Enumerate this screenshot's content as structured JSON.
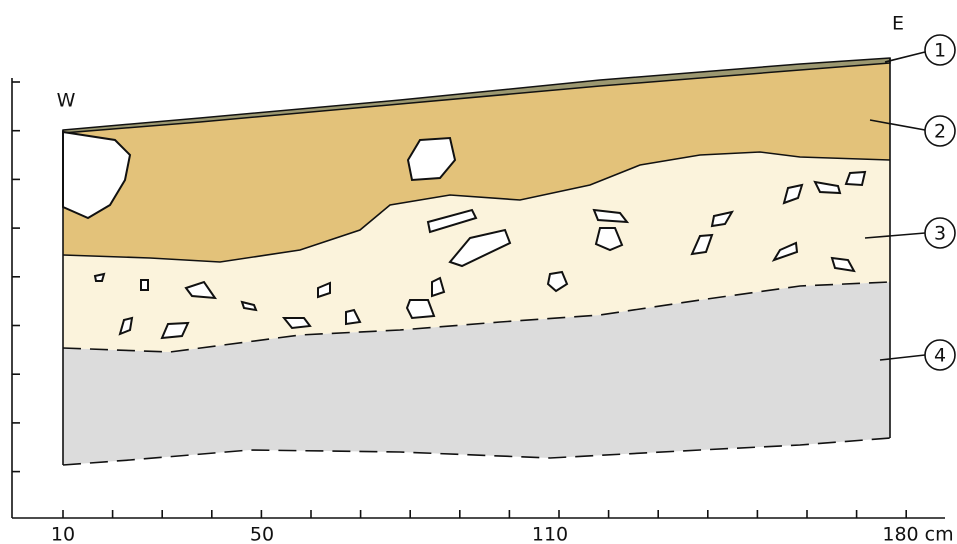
{
  "orientation": {
    "west": "W",
    "east": "E"
  },
  "layers": [
    {
      "label": "1"
    },
    {
      "label": "2"
    },
    {
      "label": "3"
    },
    {
      "label": "4"
    }
  ],
  "axis": {
    "ticks": [
      {
        "label": "10"
      },
      {
        "label": "50"
      },
      {
        "label": "110"
      },
      {
        "label": "180 cm"
      }
    ]
  }
}
